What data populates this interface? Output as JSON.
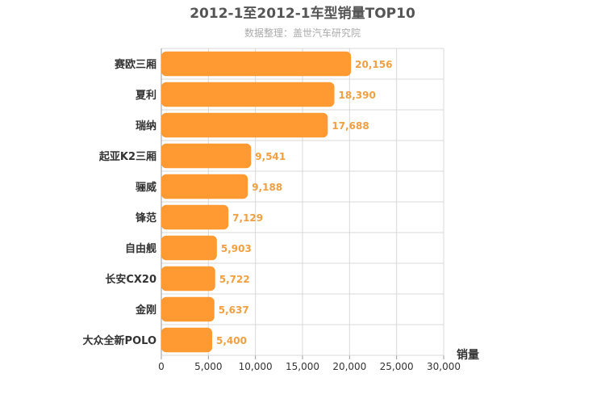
{
  "chart_data": {
    "type": "bar",
    "orientation": "horizontal",
    "title": "2012-1至2012-1车型销量TOP10",
    "subtitle": "数据整理：盖世汽车研究院",
    "xlabel": "销量",
    "ylabel": "",
    "xlim": [
      0,
      30000
    ],
    "xticks": [
      "0",
      "5,000",
      "10,000",
      "15,000",
      "20,000",
      "25,000",
      "30,000"
    ],
    "grid": true,
    "categories": [
      "赛欧三厢",
      "夏利",
      "瑞纳",
      "起亚K2三厢",
      "骊威",
      "锋范",
      "自由舰",
      "长安CX20",
      "金刚",
      "大众全新POLO"
    ],
    "values": [
      20156,
      18390,
      17688,
      9541,
      9188,
      7129,
      5903,
      5722,
      5637,
      5400
    ],
    "value_labels": [
      "20,156",
      "18,390",
      "17,688",
      "9,541",
      "9,188",
      "7,129",
      "5,903",
      "5,722",
      "5,637",
      "5,400"
    ],
    "colors": {
      "bar": "#ff9a33",
      "value_label": "#f0a040",
      "grid": "#d9d9d9",
      "title": "#555555",
      "subtitle": "#aaaaaa",
      "axis_text": "#333333"
    }
  }
}
